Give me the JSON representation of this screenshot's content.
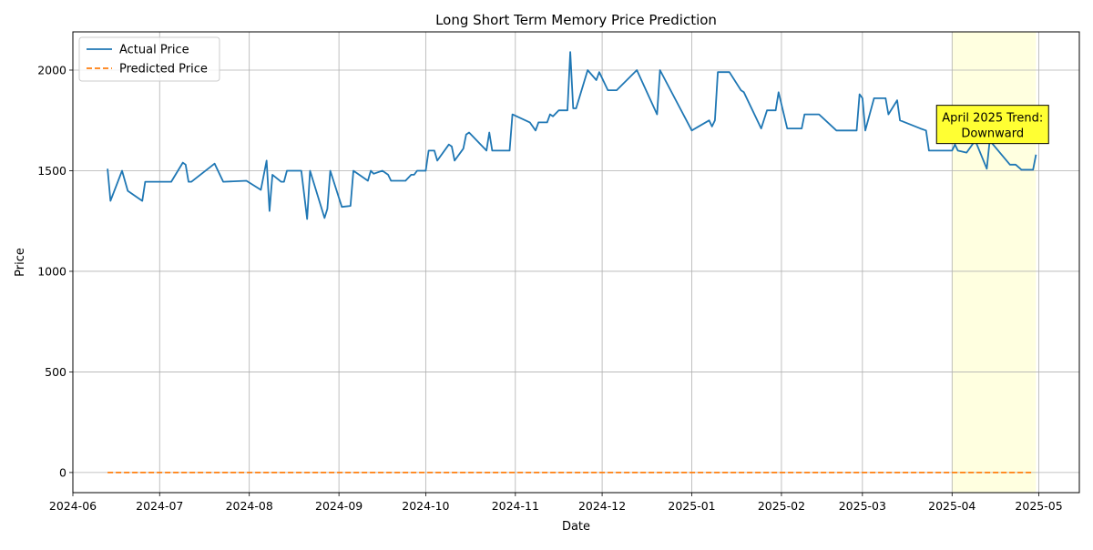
{
  "chart_data": {
    "type": "line",
    "title": "Long Short Term Memory Price Prediction",
    "xlabel": "Date",
    "ylabel": "Price",
    "xlim": [
      "2024-06-01",
      "2025-05-15"
    ],
    "ylim": [
      -100,
      2190
    ],
    "grid": true,
    "legend_position": "top-left",
    "x_ticks": [
      "2024-06-01",
      "2024-07-01",
      "2024-08-01",
      "2024-09-01",
      "2024-10-01",
      "2024-11-01",
      "2024-12-01",
      "2025-01-01",
      "2025-02-01",
      "2025-03-01",
      "2025-04-01",
      "2025-05-01"
    ],
    "x_tick_labels": [
      "2024-06",
      "2024-07",
      "2024-08",
      "2024-09",
      "2024-10",
      "2024-11",
      "2024-12",
      "2025-01",
      "2025-02",
      "2025-03",
      "2025-04",
      "2025-05"
    ],
    "y_ticks": [
      0,
      500,
      1000,
      1500,
      2000
    ],
    "y_tick_labels": [
      "0",
      "500",
      "1000",
      "1500",
      "2000"
    ],
    "highlight": {
      "start": "2025-04-01",
      "end": "2025-04-30",
      "color": "#ffffe0"
    },
    "annotation": {
      "lines": [
        "April 2025 Trend:",
        "Downward"
      ],
      "x": "2025-04-15",
      "y": 1730,
      "box_color": "#ffff33",
      "edge_color": "#000000"
    },
    "series": [
      {
        "name": "Actual Price",
        "color": "#1f77b4",
        "style": "solid",
        "points": [
          [
            "2024-06-13",
            1510
          ],
          [
            "2024-06-14",
            1350
          ],
          [
            "2024-06-18",
            1500
          ],
          [
            "2024-06-20",
            1400
          ],
          [
            "2024-06-25",
            1350
          ],
          [
            "2024-06-26",
            1445
          ],
          [
            "2024-07-05",
            1445
          ],
          [
            "2024-07-09",
            1540
          ],
          [
            "2024-07-10",
            1530
          ],
          [
            "2024-07-11",
            1445
          ],
          [
            "2024-07-12",
            1445
          ],
          [
            "2024-07-20",
            1535
          ],
          [
            "2024-07-23",
            1445
          ],
          [
            "2024-07-31",
            1450
          ],
          [
            "2024-08-05",
            1405
          ],
          [
            "2024-08-07",
            1550
          ],
          [
            "2024-08-08",
            1300
          ],
          [
            "2024-08-09",
            1480
          ],
          [
            "2024-08-12",
            1445
          ],
          [
            "2024-08-13",
            1445
          ],
          [
            "2024-08-14",
            1500
          ],
          [
            "2024-08-19",
            1500
          ],
          [
            "2024-08-21",
            1260
          ],
          [
            "2024-08-22",
            1500
          ],
          [
            "2024-08-27",
            1265
          ],
          [
            "2024-08-28",
            1310
          ],
          [
            "2024-08-29",
            1500
          ],
          [
            "2024-09-02",
            1320
          ],
          [
            "2024-09-05",
            1325
          ],
          [
            "2024-09-06",
            1500
          ],
          [
            "2024-09-11",
            1450
          ],
          [
            "2024-09-12",
            1500
          ],
          [
            "2024-09-13",
            1485
          ],
          [
            "2024-09-16",
            1500
          ],
          [
            "2024-09-18",
            1480
          ],
          [
            "2024-09-19",
            1450
          ],
          [
            "2024-09-24",
            1450
          ],
          [
            "2024-09-26",
            1480
          ],
          [
            "2024-09-27",
            1480
          ],
          [
            "2024-09-28",
            1500
          ],
          [
            "2024-10-01",
            1500
          ],
          [
            "2024-10-02",
            1600
          ],
          [
            "2024-10-04",
            1600
          ],
          [
            "2024-10-05",
            1550
          ],
          [
            "2024-10-09",
            1630
          ],
          [
            "2024-10-10",
            1620
          ],
          [
            "2024-10-11",
            1550
          ],
          [
            "2024-10-14",
            1610
          ],
          [
            "2024-10-15",
            1680
          ],
          [
            "2024-10-16",
            1690
          ],
          [
            "2024-10-22",
            1600
          ],
          [
            "2024-10-23",
            1690
          ],
          [
            "2024-10-24",
            1600
          ],
          [
            "2024-10-30",
            1600
          ],
          [
            "2024-10-31",
            1780
          ],
          [
            "2024-11-06",
            1740
          ],
          [
            "2024-11-08",
            1700
          ],
          [
            "2024-11-09",
            1740
          ],
          [
            "2024-11-12",
            1740
          ],
          [
            "2024-11-13",
            1780
          ],
          [
            "2024-11-14",
            1770
          ],
          [
            "2024-11-16",
            1800
          ],
          [
            "2024-11-19",
            1800
          ],
          [
            "2024-11-20",
            2090
          ],
          [
            "2024-11-21",
            1810
          ],
          [
            "2024-11-22",
            1810
          ],
          [
            "2024-11-26",
            2000
          ],
          [
            "2024-11-29",
            1950
          ],
          [
            "2024-11-30",
            1990
          ],
          [
            "2024-12-03",
            1900
          ],
          [
            "2024-12-06",
            1900
          ],
          [
            "2024-12-13",
            2000
          ],
          [
            "2024-12-20",
            1780
          ],
          [
            "2024-12-21",
            2000
          ],
          [
            "2025-01-01",
            1700
          ],
          [
            "2025-01-07",
            1750
          ],
          [
            "2025-01-08",
            1720
          ],
          [
            "2025-01-09",
            1750
          ],
          [
            "2025-01-10",
            1990
          ],
          [
            "2025-01-14",
            1990
          ],
          [
            "2025-01-18",
            1900
          ],
          [
            "2025-01-19",
            1890
          ],
          [
            "2025-01-25",
            1710
          ],
          [
            "2025-01-27",
            1800
          ],
          [
            "2025-01-30",
            1800
          ],
          [
            "2025-01-31",
            1890
          ],
          [
            "2025-02-03",
            1710
          ],
          [
            "2025-02-08",
            1710
          ],
          [
            "2025-02-09",
            1780
          ],
          [
            "2025-02-14",
            1780
          ],
          [
            "2025-02-20",
            1700
          ],
          [
            "2025-02-27",
            1700
          ],
          [
            "2025-02-28",
            1880
          ],
          [
            "2025-03-01",
            1860
          ],
          [
            "2025-03-02",
            1700
          ],
          [
            "2025-03-05",
            1860
          ],
          [
            "2025-03-09",
            1860
          ],
          [
            "2025-03-10",
            1780
          ],
          [
            "2025-03-13",
            1850
          ],
          [
            "2025-03-14",
            1750
          ],
          [
            "2025-03-21",
            1710
          ],
          [
            "2025-03-23",
            1700
          ],
          [
            "2025-03-24",
            1600
          ],
          [
            "2025-04-01",
            1600
          ],
          [
            "2025-04-02",
            1630
          ],
          [
            "2025-04-03",
            1600
          ],
          [
            "2025-04-06",
            1590
          ],
          [
            "2025-04-09",
            1650
          ],
          [
            "2025-04-13",
            1510
          ],
          [
            "2025-04-14",
            1650
          ],
          [
            "2025-04-21",
            1530
          ],
          [
            "2025-04-23",
            1530
          ],
          [
            "2025-04-25",
            1505
          ],
          [
            "2025-04-29",
            1505
          ],
          [
            "2025-04-30",
            1580
          ]
        ]
      },
      {
        "name": "Predicted Price",
        "color": "#ff7f0e",
        "style": "dashed",
        "points": [
          [
            "2024-06-13",
            0
          ],
          [
            "2025-04-29",
            0
          ]
        ]
      }
    ]
  }
}
